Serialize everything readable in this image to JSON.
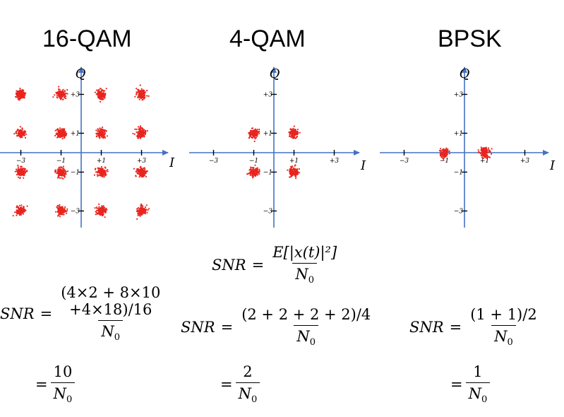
{
  "titles": {
    "qam16": "16-QAM",
    "qam4": "4-QAM",
    "bpsk": "BPSK"
  },
  "axes": {
    "i_label": "I",
    "q_label": "Q",
    "x_ticks": [
      "−3",
      "−1",
      "+1",
      "+3"
    ],
    "y_ticks": [
      "+3",
      "+1",
      "−1",
      "−3"
    ]
  },
  "colors": {
    "axis": "#4472c4",
    "points": "#e8251f"
  },
  "chart_data": [
    {
      "type": "scatter",
      "title": "16-QAM",
      "xlabel": "I",
      "ylabel": "Q",
      "xlim": [
        -3.8,
        4.4
      ],
      "ylim": [
        -3.6,
        3.9
      ],
      "points": [
        [
          -3,
          3
        ],
        [
          -1,
          3
        ],
        [
          1,
          3
        ],
        [
          3,
          3
        ],
        [
          -3,
          1
        ],
        [
          -1,
          1
        ],
        [
          1,
          1
        ],
        [
          3,
          1
        ],
        [
          -3,
          -1
        ],
        [
          -1,
          -1
        ],
        [
          1,
          -1
        ],
        [
          3,
          -1
        ],
        [
          -3,
          -3
        ],
        [
          -1,
          -3
        ],
        [
          1,
          -3
        ],
        [
          3,
          -3
        ]
      ]
    },
    {
      "type": "scatter",
      "title": "4-QAM",
      "xlabel": "I",
      "ylabel": "Q",
      "xlim": [
        -4,
        4.6
      ],
      "ylim": [
        -3.6,
        3.9
      ],
      "points": [
        [
          -1,
          1
        ],
        [
          1,
          1
        ],
        [
          -1,
          -1
        ],
        [
          1,
          -1
        ]
      ]
    },
    {
      "type": "scatter",
      "title": "BPSK",
      "xlabel": "I",
      "ylabel": "Q",
      "xlim": [
        -4,
        4.6
      ],
      "ylim": [
        -3.6,
        3.9
      ],
      "points": [
        [
          -1,
          0
        ],
        [
          1,
          0
        ]
      ]
    }
  ],
  "formulas": {
    "general": {
      "lhs": "SNR",
      "eq": "=",
      "num": "E[|x(t)|²]",
      "den": "N",
      "den_sub": "0"
    },
    "qam16": {
      "lhs": "SNR",
      "eq": "=",
      "num_line1": "(4×2 + 8×10",
      "num_line2": "+4×18)/16",
      "den": "N",
      "den_sub": "0",
      "result_eq": "=",
      "result_num": "10",
      "result_den": "N",
      "result_den_sub": "0"
    },
    "qam4": {
      "lhs": "SNR",
      "eq": "=",
      "num": "(2 + 2 + 2 + 2)/4",
      "den": "N",
      "den_sub": "0",
      "result_eq": "=",
      "result_num": "2",
      "result_den": "N",
      "result_den_sub": "0"
    },
    "bpsk": {
      "lhs": "SNR",
      "eq": "=",
      "num": "(1 + 1)/2",
      "den": "N",
      "den_sub": "0",
      "result_eq": "=",
      "result_num": "1",
      "result_den": "N",
      "result_den_sub": "0"
    }
  }
}
